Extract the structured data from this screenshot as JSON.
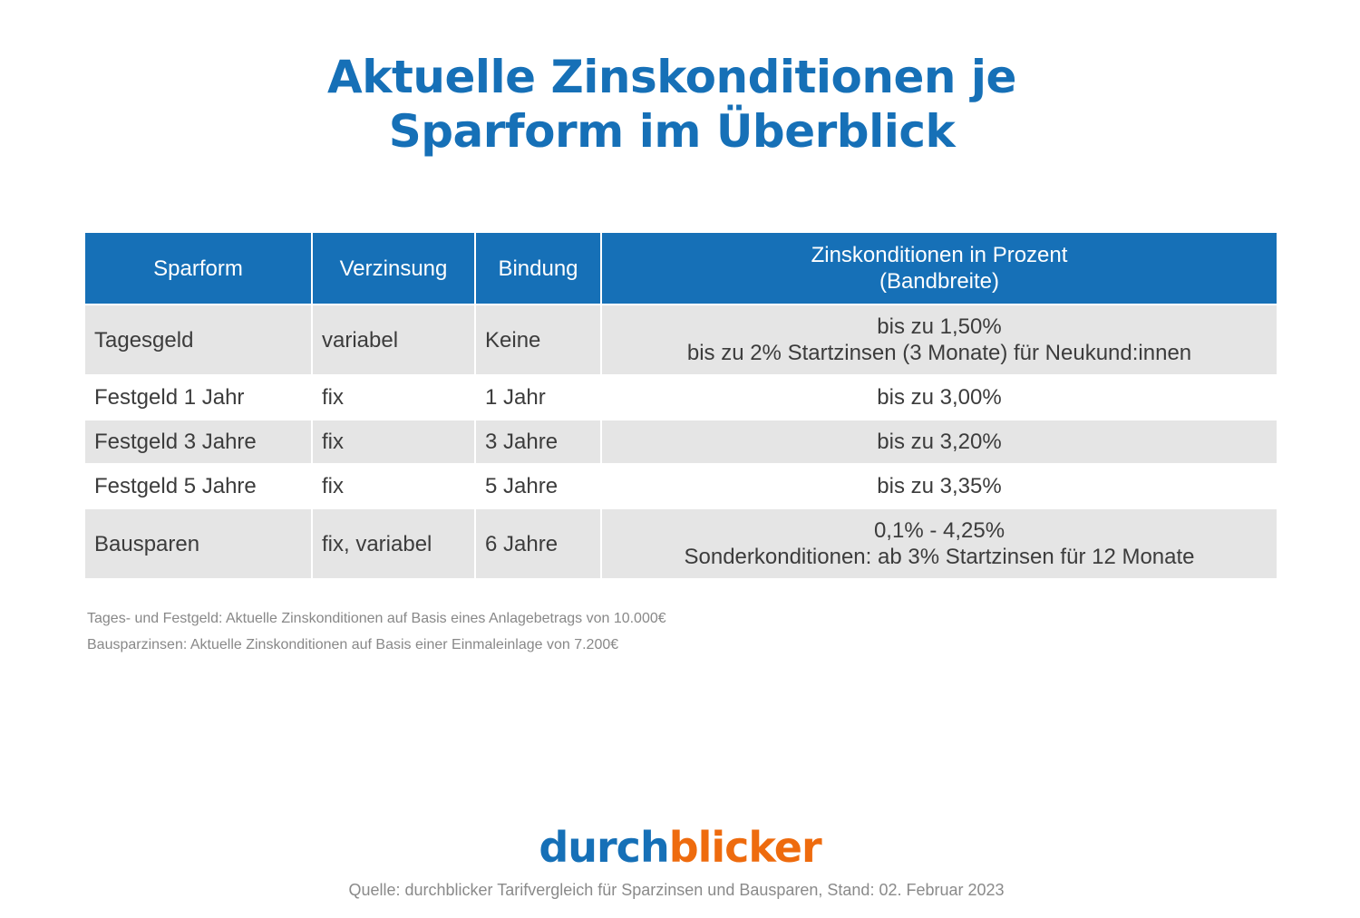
{
  "title": [
    "Aktuelle Zinskonditionen je",
    "Sparform im Überblick"
  ],
  "table": {
    "headers": [
      "Sparform",
      "Verzinsung",
      "Bindung",
      "Zinskonditionen in Prozent",
      "(Bandbreite)"
    ],
    "rows": [
      {
        "sparform": "Tagesgeld",
        "verzinsung": "variabel",
        "bindung": "Keine",
        "zins": [
          "bis zu 1,50%",
          "bis zu 2% Startzinsen (3 Monate) für Neukund:innen"
        ]
      },
      {
        "sparform": "Festgeld 1 Jahr",
        "verzinsung": "fix",
        "bindung": "1 Jahr",
        "zins": [
          "bis zu 3,00%"
        ]
      },
      {
        "sparform": "Festgeld 3 Jahre",
        "verzinsung": "fix",
        "bindung": "3 Jahre",
        "zins": [
          "bis zu 3,20%"
        ]
      },
      {
        "sparform": "Festgeld 5 Jahre",
        "verzinsung": "fix",
        "bindung": "5 Jahre",
        "zins": [
          "bis zu 3,35%"
        ]
      },
      {
        "sparform": "Bausparen",
        "verzinsung": "fix, variabel",
        "bindung": "6 Jahre",
        "zins": [
          "0,1% - 4,25%",
          "Sonderkonditionen: ab 3% Startzinsen für 12 Monate"
        ]
      }
    ]
  },
  "notes": [
    "Tages- und Festgeld: Aktuelle Zinskonditionen auf Basis eines Anlagebetrags von 10.000€",
    "Bausparzinsen: Aktuelle Zinskonditionen auf Basis einer Einmaleinlage von 7.200€"
  ],
  "logo": {
    "part1": "durch",
    "part2": "blicker"
  },
  "source": "Quelle: durchblicker Tarifvergleich für Sparzinsen und Bausparen, Stand: 02. Februar 2023",
  "colors": {
    "brand_blue": "#1670b7",
    "brand_orange": "#ee6b0e",
    "row_gray": "#e5e5e5"
  }
}
